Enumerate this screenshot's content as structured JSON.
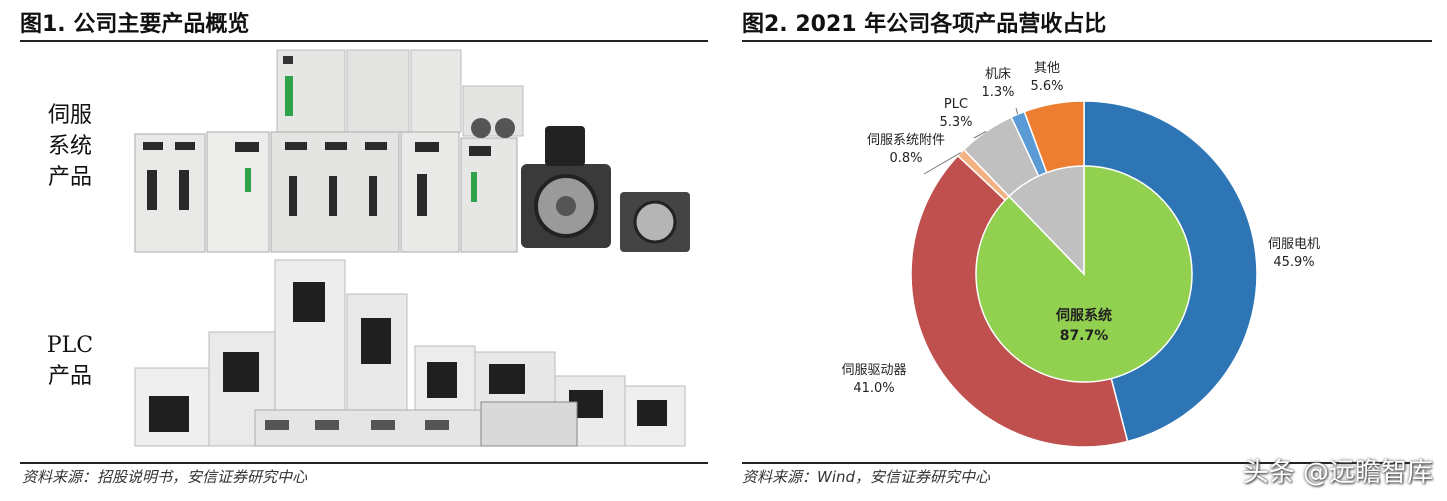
{
  "left_panel": {
    "title": "图1. 公司主要产品概览",
    "servo_label_lines": [
      "伺服",
      "系统",
      "产品"
    ],
    "plc_label_lines": [
      "PLC",
      "产品"
    ],
    "source": "资料来源：招股说明书，安信证券研究中心"
  },
  "right_panel": {
    "title": "图2. 2021 年公司各项产品营收占比",
    "source": "资料来源：Wind，安信证券研究中心"
  },
  "watermark": "头条 @远瞻智库",
  "chart_data": {
    "type": "pie",
    "subtype": "nested-donut",
    "title": "2021 年公司各项产品营收占比",
    "inner": [
      {
        "name": "伺服系统",
        "value": 87.7,
        "label": "87.7%",
        "color": "#92d050"
      }
    ],
    "outer": [
      {
        "name": "伺服电机",
        "value": 45.9,
        "label": "45.9%",
        "color": "#2e75b6"
      },
      {
        "name": "伺服驱动器",
        "value": 41.0,
        "label": "41.0%",
        "color": "#c0504d"
      },
      {
        "name": "伺服系统附件",
        "value": 0.8,
        "label": "0.8%",
        "color": "#f4b183"
      },
      {
        "name": "PLC",
        "value": 5.3,
        "label": "5.3%",
        "color": "#c0c0c0"
      },
      {
        "name": "机床",
        "value": 1.3,
        "label": "1.3%",
        "color": "#5b9bd5"
      },
      {
        "name": "其他",
        "value": 5.6,
        "label": "5.6%",
        "color": "#ed7d31"
      }
    ],
    "start_angle_deg": 0,
    "direction": "clockwise"
  }
}
